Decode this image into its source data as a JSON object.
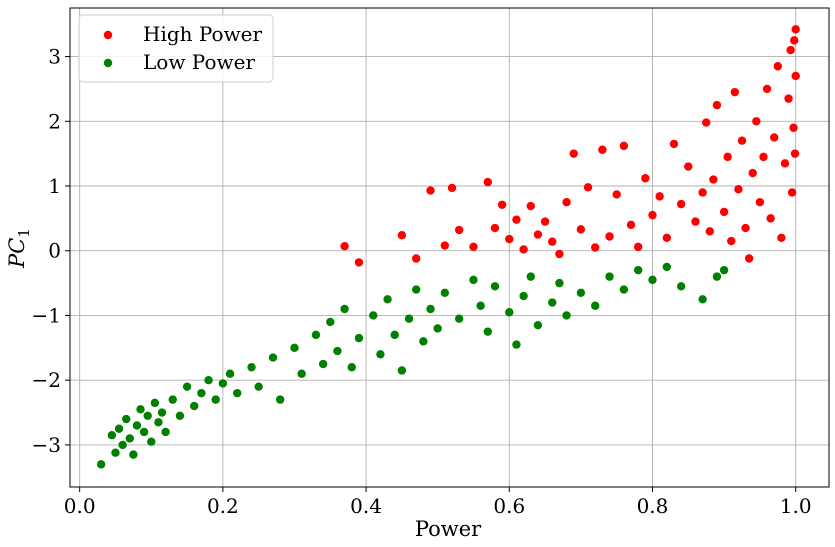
{
  "chart_data": {
    "type": "scatter",
    "xlabel": "Power",
    "ylabel": "PC",
    "ylabel_subscript": "1",
    "xlim": [
      -0.0135,
      1.0465
    ],
    "ylim": [
      -3.65,
      3.75
    ],
    "xticks": [
      0.0,
      0.2,
      0.4,
      0.6,
      0.8,
      1.0
    ],
    "xtick_labels": [
      "0.0",
      "0.2",
      "0.4",
      "0.6",
      "0.8",
      "1.0"
    ],
    "yticks": [
      -3,
      -2,
      -1,
      0,
      1,
      2,
      3
    ],
    "ytick_labels": [
      "−3",
      "−2",
      "−1",
      "0",
      "1",
      "2",
      "3"
    ],
    "grid": true,
    "legend": {
      "position": "top-left"
    },
    "series": [
      {
        "name": "High Power",
        "color": "#ff0000",
        "points": [
          [
            0.37,
            0.07
          ],
          [
            0.39,
            -0.18
          ],
          [
            0.45,
            0.24
          ],
          [
            0.47,
            -0.12
          ],
          [
            0.49,
            0.93
          ],
          [
            0.52,
            0.97
          ],
          [
            0.51,
            0.08
          ],
          [
            0.53,
            0.32
          ],
          [
            0.55,
            0.06
          ],
          [
            0.57,
            1.06
          ],
          [
            0.58,
            0.35
          ],
          [
            0.59,
            0.71
          ],
          [
            0.6,
            0.18
          ],
          [
            0.61,
            0.48
          ],
          [
            0.62,
            0.02
          ],
          [
            0.63,
            0.69
          ],
          [
            0.64,
            0.25
          ],
          [
            0.65,
            0.45
          ],
          [
            0.66,
            0.14
          ],
          [
            0.67,
            -0.05
          ],
          [
            0.68,
            0.75
          ],
          [
            0.69,
            1.5
          ],
          [
            0.7,
            0.33
          ],
          [
            0.71,
            0.98
          ],
          [
            0.72,
            0.05
          ],
          [
            0.73,
            1.56
          ],
          [
            0.74,
            0.22
          ],
          [
            0.75,
            0.87
          ],
          [
            0.76,
            1.62
          ],
          [
            0.77,
            0.4
          ],
          [
            0.78,
            0.06
          ],
          [
            0.79,
            1.12
          ],
          [
            0.8,
            0.55
          ],
          [
            0.81,
            0.84
          ],
          [
            0.82,
            0.2
          ],
          [
            0.83,
            1.65
          ],
          [
            0.84,
            0.72
          ],
          [
            0.85,
            1.3
          ],
          [
            0.86,
            0.45
          ],
          [
            0.87,
            0.9
          ],
          [
            0.875,
            1.98
          ],
          [
            0.88,
            0.3
          ],
          [
            0.885,
            1.1
          ],
          [
            0.89,
            2.25
          ],
          [
            0.9,
            0.6
          ],
          [
            0.905,
            1.45
          ],
          [
            0.91,
            0.15
          ],
          [
            0.915,
            2.45
          ],
          [
            0.92,
            0.95
          ],
          [
            0.925,
            1.7
          ],
          [
            0.93,
            0.35
          ],
          [
            0.935,
            -0.12
          ],
          [
            0.94,
            1.2
          ],
          [
            0.945,
            2.0
          ],
          [
            0.95,
            0.75
          ],
          [
            0.955,
            1.45
          ],
          [
            0.96,
            2.5
          ],
          [
            0.965,
            0.5
          ],
          [
            0.97,
            1.75
          ],
          [
            0.975,
            2.85
          ],
          [
            0.98,
            0.2
          ],
          [
            0.985,
            1.35
          ],
          [
            0.99,
            2.35
          ],
          [
            0.993,
            3.1
          ],
          [
            0.995,
            0.9
          ],
          [
            0.997,
            1.9
          ],
          [
            0.998,
            3.25
          ],
          [
            0.999,
            1.5
          ],
          [
            1.0,
            2.7
          ],
          [
            1.0,
            3.42
          ]
        ]
      },
      {
        "name": "Low Power",
        "color": "#008000",
        "points": [
          [
            0.03,
            -3.3
          ],
          [
            0.045,
            -2.85
          ],
          [
            0.05,
            -3.12
          ],
          [
            0.055,
            -2.75
          ],
          [
            0.06,
            -3.0
          ],
          [
            0.065,
            -2.6
          ],
          [
            0.07,
            -2.9
          ],
          [
            0.075,
            -3.15
          ],
          [
            0.08,
            -2.7
          ],
          [
            0.085,
            -2.45
          ],
          [
            0.09,
            -2.8
          ],
          [
            0.095,
            -2.55
          ],
          [
            0.1,
            -2.95
          ],
          [
            0.105,
            -2.35
          ],
          [
            0.11,
            -2.65
          ],
          [
            0.115,
            -2.5
          ],
          [
            0.12,
            -2.8
          ],
          [
            0.13,
            -2.3
          ],
          [
            0.14,
            -2.55
          ],
          [
            0.15,
            -2.1
          ],
          [
            0.16,
            -2.4
          ],
          [
            0.17,
            -2.2
          ],
          [
            0.18,
            -2.0
          ],
          [
            0.19,
            -2.3
          ],
          [
            0.2,
            -2.05
          ],
          [
            0.21,
            -1.9
          ],
          [
            0.22,
            -2.2
          ],
          [
            0.24,
            -1.8
          ],
          [
            0.25,
            -2.1
          ],
          [
            0.27,
            -1.65
          ],
          [
            0.28,
            -2.3
          ],
          [
            0.3,
            -1.5
          ],
          [
            0.31,
            -1.9
          ],
          [
            0.33,
            -1.3
          ],
          [
            0.34,
            -1.75
          ],
          [
            0.35,
            -1.1
          ],
          [
            0.36,
            -1.55
          ],
          [
            0.37,
            -0.9
          ],
          [
            0.38,
            -1.8
          ],
          [
            0.39,
            -1.35
          ],
          [
            0.41,
            -1.0
          ],
          [
            0.42,
            -1.6
          ],
          [
            0.43,
            -0.75
          ],
          [
            0.44,
            -1.3
          ],
          [
            0.45,
            -1.85
          ],
          [
            0.46,
            -1.05
          ],
          [
            0.47,
            -0.6
          ],
          [
            0.48,
            -1.4
          ],
          [
            0.49,
            -0.9
          ],
          [
            0.5,
            -1.2
          ],
          [
            0.51,
            -0.65
          ],
          [
            0.53,
            -1.05
          ],
          [
            0.55,
            -0.45
          ],
          [
            0.56,
            -0.85
          ],
          [
            0.57,
            -1.25
          ],
          [
            0.58,
            -0.55
          ],
          [
            0.6,
            -0.95
          ],
          [
            0.61,
            -1.45
          ],
          [
            0.62,
            -0.7
          ],
          [
            0.63,
            -0.4
          ],
          [
            0.64,
            -1.15
          ],
          [
            0.66,
            -0.8
          ],
          [
            0.67,
            -0.5
          ],
          [
            0.68,
            -1.0
          ],
          [
            0.7,
            -0.65
          ],
          [
            0.72,
            -0.85
          ],
          [
            0.74,
            -0.4
          ],
          [
            0.76,
            -0.6
          ],
          [
            0.78,
            -0.3
          ],
          [
            0.8,
            -0.45
          ],
          [
            0.82,
            -0.25
          ],
          [
            0.84,
            -0.55
          ],
          [
            0.87,
            -0.75
          ],
          [
            0.89,
            -0.4
          ],
          [
            0.9,
            -0.3
          ]
        ]
      }
    ]
  }
}
